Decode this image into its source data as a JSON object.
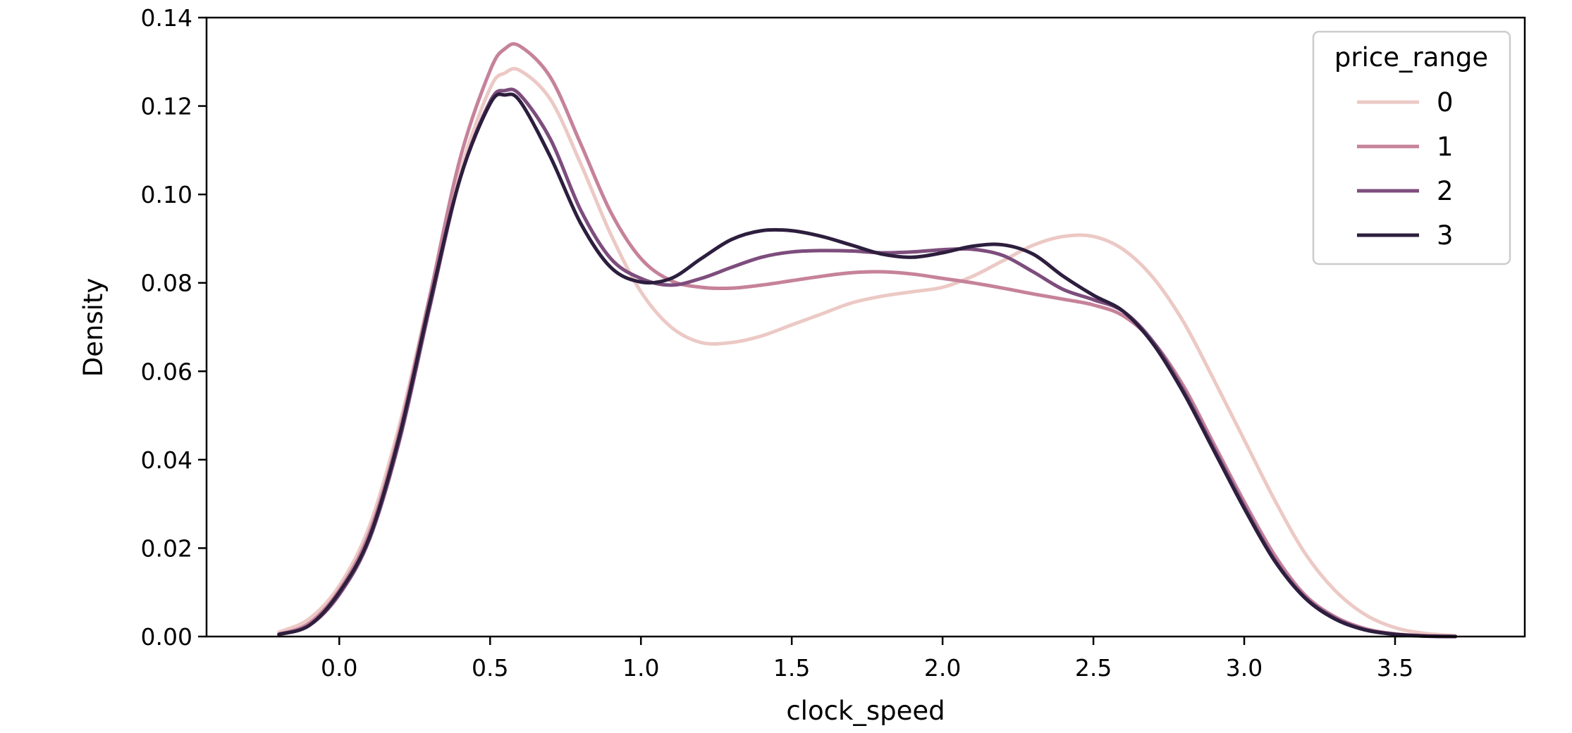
{
  "chart_data": {
    "type": "line",
    "title": "",
    "xlabel": "clock_speed",
    "ylabel": "Density",
    "xlim": [
      -0.44,
      3.93
    ],
    "ylim": [
      0,
      0.14
    ],
    "xticks": [
      "0.0",
      "0.5",
      "1.0",
      "1.5",
      "2.0",
      "2.5",
      "3.0",
      "3.5"
    ],
    "yticks": [
      "0.00",
      "0.02",
      "0.04",
      "0.06",
      "0.08",
      "0.10",
      "0.12",
      "0.14"
    ],
    "grid": false,
    "legend": {
      "title": "price_range",
      "placement": "top-right"
    },
    "x": [
      -0.2,
      -0.1,
      0.0,
      0.1,
      0.2,
      0.3,
      0.4,
      0.5,
      0.55,
      0.6,
      0.7,
      0.8,
      0.9,
      1.0,
      1.1,
      1.2,
      1.3,
      1.4,
      1.5,
      1.6,
      1.7,
      1.8,
      1.9,
      2.0,
      2.1,
      2.2,
      2.3,
      2.4,
      2.5,
      2.6,
      2.7,
      2.8,
      2.9,
      3.0,
      3.1,
      3.2,
      3.3,
      3.4,
      3.5,
      3.6,
      3.7
    ],
    "series": [
      {
        "name": "0",
        "color": "#ecc9c5",
        "values": [
          0.001,
          0.004,
          0.0115,
          0.025,
          0.048,
          0.077,
          0.105,
          0.124,
          0.1275,
          0.128,
          0.1215,
          0.107,
          0.091,
          0.078,
          0.07,
          0.0665,
          0.0665,
          0.068,
          0.0705,
          0.073,
          0.0755,
          0.077,
          0.078,
          0.079,
          0.0815,
          0.085,
          0.0885,
          0.0905,
          0.0905,
          0.0875,
          0.081,
          0.071,
          0.058,
          0.0445,
          0.031,
          0.019,
          0.0105,
          0.005,
          0.002,
          0.0007,
          0.0002
        ]
      },
      {
        "name": "1",
        "color": "#c6829a",
        "values": [
          0.0005,
          0.003,
          0.0105,
          0.0235,
          0.0465,
          0.077,
          0.108,
          0.128,
          0.133,
          0.1335,
          0.1265,
          0.1115,
          0.096,
          0.0855,
          0.0805,
          0.079,
          0.0788,
          0.0795,
          0.0805,
          0.0815,
          0.0823,
          0.0825,
          0.082,
          0.081,
          0.08,
          0.0788,
          0.0775,
          0.0763,
          0.075,
          0.0725,
          0.0665,
          0.0565,
          0.0435,
          0.0305,
          0.0185,
          0.0095,
          0.0045,
          0.0018,
          0.0006,
          0.0002,
          0.0
        ]
      },
      {
        "name": "2",
        "color": "#7d4d7d",
        "values": [
          0.0005,
          0.0025,
          0.0095,
          0.022,
          0.0445,
          0.0745,
          0.1035,
          0.121,
          0.1235,
          0.1225,
          0.1125,
          0.0965,
          0.0855,
          0.081,
          0.0795,
          0.081,
          0.0835,
          0.0858,
          0.087,
          0.0873,
          0.0872,
          0.0868,
          0.087,
          0.0875,
          0.0876,
          0.0862,
          0.0825,
          0.0785,
          0.0762,
          0.0735,
          0.0665,
          0.0555,
          0.0425,
          0.0295,
          0.0175,
          0.009,
          0.0042,
          0.0016,
          0.0005,
          0.0001,
          0.0
        ]
      },
      {
        "name": "3",
        "color": "#2d1e3e",
        "values": [
          0.0005,
          0.0025,
          0.01,
          0.0225,
          0.0455,
          0.0755,
          0.1035,
          0.1205,
          0.1225,
          0.121,
          0.1085,
          0.0935,
          0.0835,
          0.0802,
          0.081,
          0.0855,
          0.0898,
          0.0918,
          0.0918,
          0.0905,
          0.0885,
          0.0865,
          0.0858,
          0.0868,
          0.0883,
          0.0886,
          0.0865,
          0.0815,
          0.0772,
          0.0735,
          0.066,
          0.055,
          0.042,
          0.029,
          0.0172,
          0.0088,
          0.004,
          0.0015,
          0.0005,
          0.0001,
          0.0
        ]
      }
    ]
  }
}
